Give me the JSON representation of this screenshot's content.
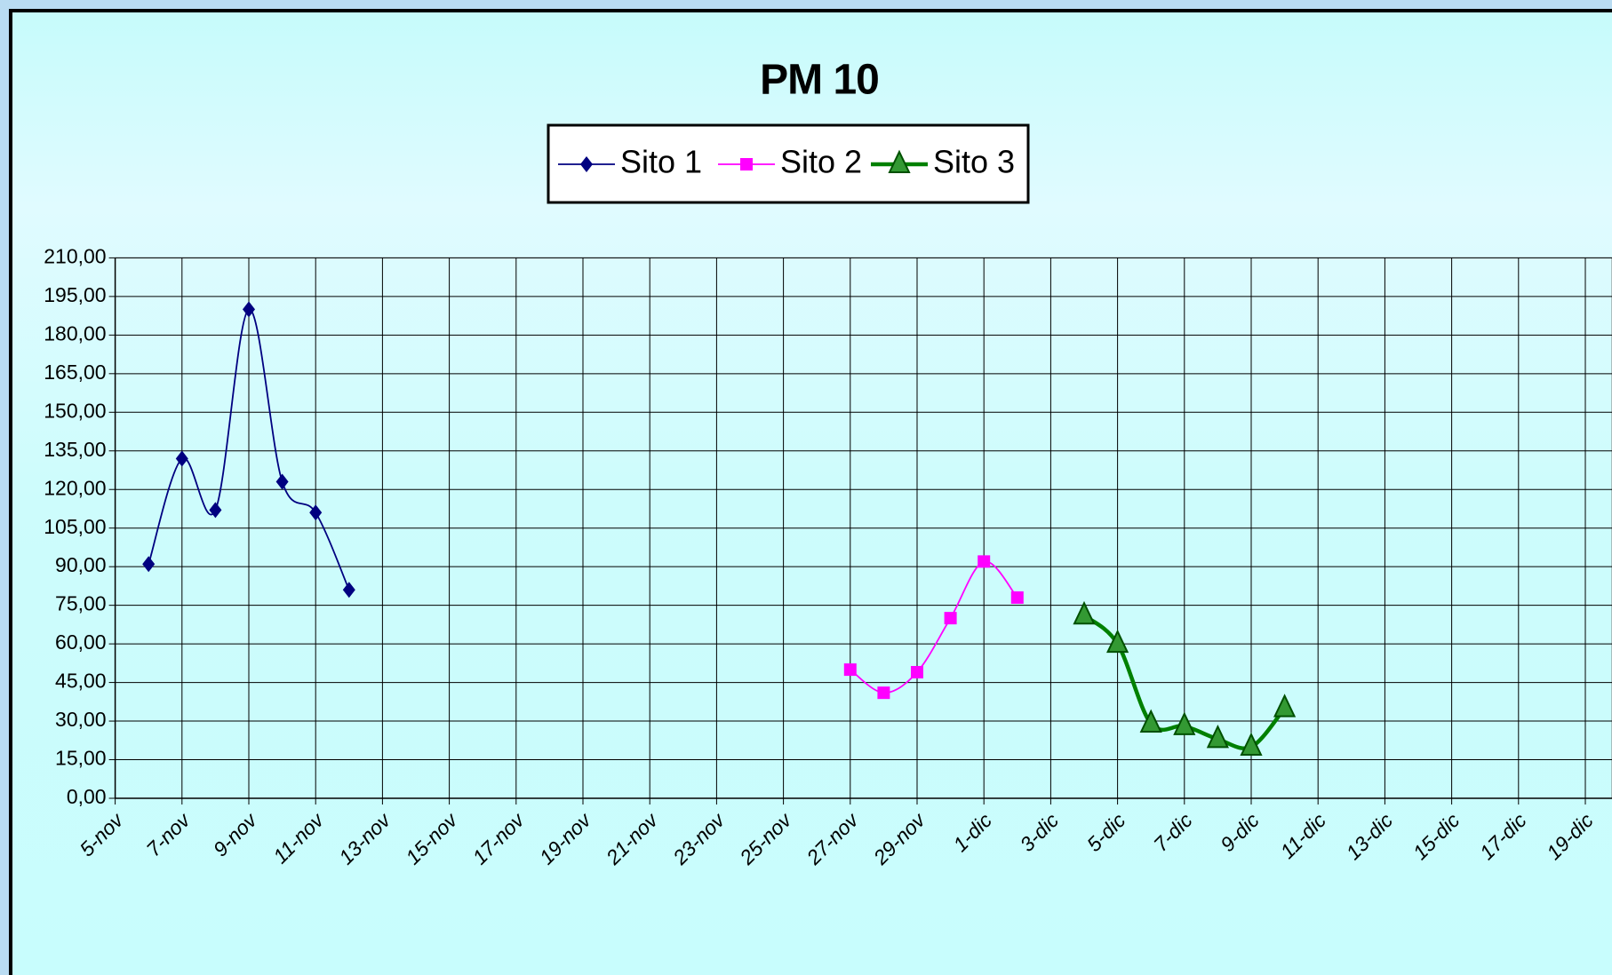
{
  "chart_data": {
    "type": "line",
    "title": "PM 10",
    "categories": [
      "5-nov",
      null,
      "7-nov",
      null,
      "9-nov",
      null,
      "11-nov",
      null,
      "13-nov",
      null,
      "15-nov",
      null,
      "17-nov",
      null,
      "19-nov",
      null,
      "21-nov",
      null,
      "23-nov",
      null,
      "25-nov",
      null,
      "27-nov",
      null,
      "29-nov",
      null,
      "1-dic",
      null,
      "3-dic",
      null,
      "5-dic",
      null,
      "7-dic",
      null,
      "9-dic",
      null,
      "11-dic",
      null,
      "13-dic",
      null,
      "15-dic",
      null,
      "17-dic",
      null,
      "19-dic"
    ],
    "series": [
      {
        "name": "Sito 1",
        "color": "#000080",
        "marker": "diamond",
        "values": [
          null,
          91,
          132,
          112,
          190,
          123,
          111,
          81,
          null,
          null,
          null,
          null,
          null,
          null,
          null,
          null,
          null,
          null,
          null,
          null,
          null,
          null,
          null,
          null,
          null,
          null,
          null,
          null,
          null,
          null,
          null,
          null,
          null,
          null,
          null,
          null,
          null,
          null,
          null,
          null,
          null,
          null,
          null,
          null,
          null
        ]
      },
      {
        "name": "Sito 2",
        "color": "#ff00ff",
        "marker": "square",
        "values": [
          null,
          null,
          null,
          null,
          null,
          null,
          null,
          null,
          null,
          null,
          null,
          null,
          null,
          null,
          null,
          null,
          null,
          null,
          null,
          null,
          null,
          null,
          50,
          41,
          49,
          70,
          92,
          78,
          null,
          null,
          null,
          null,
          null,
          null,
          null,
          null,
          null,
          null,
          null,
          null,
          null,
          null,
          null,
          null,
          null
        ]
      },
      {
        "name": "Sito 3",
        "color": "#008000",
        "marker": "triangle",
        "values": [
          null,
          null,
          null,
          null,
          null,
          null,
          null,
          null,
          null,
          null,
          null,
          null,
          null,
          null,
          null,
          null,
          null,
          null,
          null,
          null,
          null,
          null,
          null,
          null,
          null,
          null,
          null,
          null,
          null,
          71,
          60,
          29,
          28,
          23,
          20,
          35,
          null,
          null,
          null,
          null,
          null,
          null,
          null,
          null,
          null
        ]
      }
    ],
    "ylim": [
      0,
      210
    ],
    "yticks": [
      {
        "value": 0,
        "label": "0,00"
      },
      {
        "value": 15,
        "label": "15,00"
      },
      {
        "value": 30,
        "label": "30,00"
      },
      {
        "value": 45,
        "label": "45,00"
      },
      {
        "value": 60,
        "label": "60,00"
      },
      {
        "value": 75,
        "label": "75,00"
      },
      {
        "value": 90,
        "label": "90,00"
      },
      {
        "value": 105,
        "label": "105,00"
      },
      {
        "value": 120,
        "label": "120,00"
      },
      {
        "value": 135,
        "label": "135,00"
      },
      {
        "value": 150,
        "label": "150,00"
      },
      {
        "value": 165,
        "label": "165,00"
      },
      {
        "value": 180,
        "label": "180,00"
      },
      {
        "value": 195,
        "label": "195,00"
      },
      {
        "value": 210,
        "label": "210,00"
      }
    ],
    "grid": true,
    "legend": "top"
  }
}
